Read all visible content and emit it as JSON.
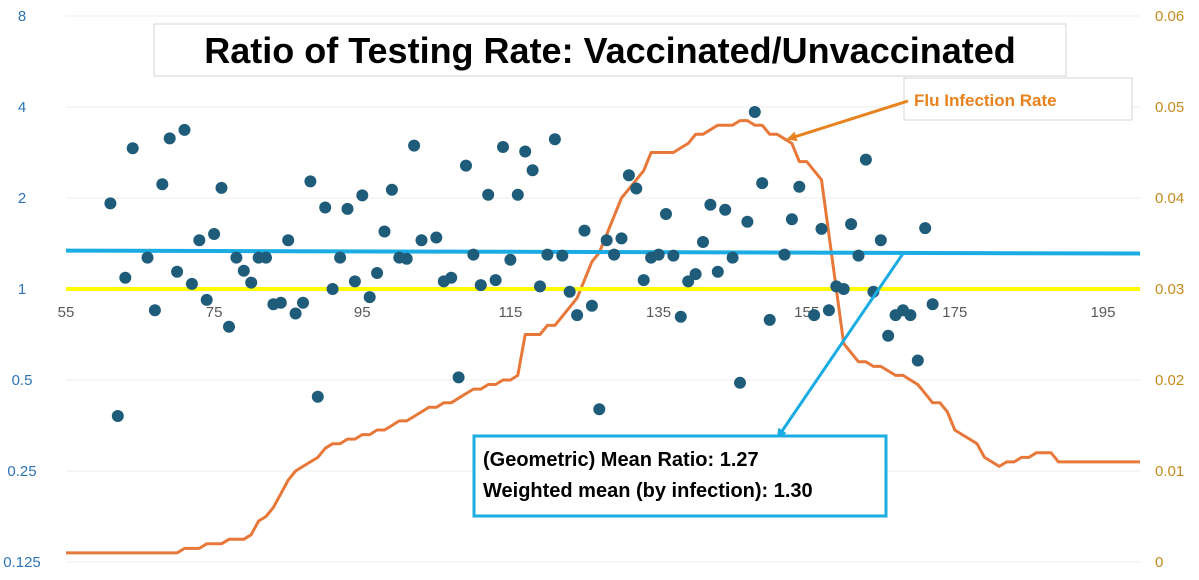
{
  "chart_data": {
    "type": "scatter",
    "title": "Ratio of Testing Rate: Vaccinated/Unvaccinated",
    "x_axis": {
      "min": 55,
      "max": 200,
      "ticks": [
        55,
        75,
        95,
        115,
        135,
        155,
        175,
        195
      ],
      "tick_labels": [
        "55",
        "75",
        "95",
        "115",
        "135",
        "155",
        "175",
        "195"
      ],
      "crosses_at_left_value": 1
    },
    "y_left": {
      "scale": "log2",
      "min": 0.125,
      "max": 8,
      "ticks": [
        0.125,
        0.25,
        0.5,
        1,
        2,
        4,
        8
      ],
      "tick_labels": [
        "0.125",
        "0.25",
        "0.5",
        "1",
        "2",
        "4",
        "8"
      ]
    },
    "y_right": {
      "scale": "linear",
      "min": 0,
      "max": 0.06,
      "ticks": [
        0,
        0.01,
        0.02,
        0.03,
        0.04,
        0.05,
        0.06
      ],
      "tick_labels": [
        "0",
        "0.01",
        "0.02",
        "0.03",
        "0.04",
        "0.05",
        "0.06"
      ]
    },
    "colors": {
      "points": "#1F5C7A",
      "flu_line": "#E8783A",
      "mean_line": "#1AACE3",
      "reference_line": "#FFFF00",
      "flu_label": "#E8821E",
      "annotation_border": "#1AACE3"
    },
    "series": [
      {
        "name": "Ratio of Testing Rate (Vaccinated/Unvaccinated)",
        "kind": "scatter",
        "axis": "left",
        "points": [
          [
            61,
            1.92
          ],
          [
            62,
            0.38
          ],
          [
            63,
            1.09
          ],
          [
            64,
            2.92
          ],
          [
            66,
            1.27
          ],
          [
            67,
            0.85
          ],
          [
            68,
            2.22
          ],
          [
            69,
            3.15
          ],
          [
            70,
            1.14
          ],
          [
            71,
            3.36
          ],
          [
            72,
            1.04
          ],
          [
            73,
            1.45
          ],
          [
            74,
            0.92
          ],
          [
            75,
            1.52
          ],
          [
            76,
            2.16
          ],
          [
            77,
            0.75
          ],
          [
            78,
            1.27
          ],
          [
            79,
            1.15
          ],
          [
            80,
            1.05
          ],
          [
            81,
            1.27
          ],
          [
            82,
            1.27
          ],
          [
            83,
            0.89
          ],
          [
            84,
            0.9
          ],
          [
            85,
            1.45
          ],
          [
            86,
            0.83
          ],
          [
            87,
            0.9
          ],
          [
            88,
            2.27
          ],
          [
            89,
            0.44
          ],
          [
            90,
            1.86
          ],
          [
            91,
            1.0
          ],
          [
            92,
            1.27
          ],
          [
            93,
            1.84
          ],
          [
            94,
            1.06
          ],
          [
            95,
            2.04
          ],
          [
            96,
            0.94
          ],
          [
            97,
            1.13
          ],
          [
            98,
            1.55
          ],
          [
            99,
            2.13
          ],
          [
            100,
            1.27
          ],
          [
            101,
            1.26
          ],
          [
            102,
            2.98
          ],
          [
            103,
            1.45
          ],
          [
            105,
            1.48
          ],
          [
            106,
            1.06
          ],
          [
            107,
            1.09
          ],
          [
            108,
            0.51
          ],
          [
            109,
            2.56
          ],
          [
            110,
            1.3
          ],
          [
            111,
            1.03
          ],
          [
            112,
            2.05
          ],
          [
            113,
            1.07
          ],
          [
            114,
            2.95
          ],
          [
            115,
            1.25
          ],
          [
            116,
            2.05
          ],
          [
            117,
            2.85
          ],
          [
            118,
            2.47
          ],
          [
            119,
            1.02
          ],
          [
            120,
            1.3
          ],
          [
            121,
            3.13
          ],
          [
            122,
            1.29
          ],
          [
            123,
            0.98
          ],
          [
            124,
            0.82
          ],
          [
            125,
            1.56
          ],
          [
            126,
            0.88
          ],
          [
            127,
            0.4
          ],
          [
            128,
            1.45
          ],
          [
            129,
            1.3
          ],
          [
            130,
            1.47
          ],
          [
            131,
            2.38
          ],
          [
            132,
            2.15
          ],
          [
            133,
            1.07
          ],
          [
            134,
            1.27
          ],
          [
            135,
            1.3
          ],
          [
            136,
            1.77
          ],
          [
            137,
            1.29
          ],
          [
            138,
            0.81
          ],
          [
            139,
            1.06
          ],
          [
            140,
            1.12
          ],
          [
            141,
            1.43
          ],
          [
            142,
            1.9
          ],
          [
            143,
            1.14
          ],
          [
            144,
            1.83
          ],
          [
            145,
            1.27
          ],
          [
            146,
            0.49
          ],
          [
            147,
            1.67
          ],
          [
            148,
            3.85
          ],
          [
            149,
            2.24
          ],
          [
            150,
            0.79
          ],
          [
            152,
            1.3
          ],
          [
            153,
            1.7
          ],
          [
            154,
            2.18
          ],
          [
            156,
            0.82
          ],
          [
            157,
            1.58
          ],
          [
            158,
            0.85
          ],
          [
            159,
            1.02
          ],
          [
            160,
            1.0
          ],
          [
            161,
            1.64
          ],
          [
            162,
            1.29
          ],
          [
            163,
            2.68
          ],
          [
            164,
            0.98
          ],
          [
            165,
            1.45
          ],
          [
            166,
            0.7
          ],
          [
            167,
            0.82
          ],
          [
            168,
            0.85
          ],
          [
            169,
            0.82
          ],
          [
            170,
            0.58
          ],
          [
            171,
            1.59
          ],
          [
            172,
            0.89
          ]
        ]
      },
      {
        "name": "Flu Infection Rate",
        "kind": "line",
        "axis": "right",
        "points": [
          [
            55,
            0.001
          ],
          [
            56,
            0.001
          ],
          [
            57,
            0.001
          ],
          [
            58,
            0.001
          ],
          [
            59,
            0.001
          ],
          [
            60,
            0.001
          ],
          [
            61,
            0.001
          ],
          [
            62,
            0.001
          ],
          [
            63,
            0.001
          ],
          [
            64,
            0.001
          ],
          [
            65,
            0.001
          ],
          [
            66,
            0.001
          ],
          [
            67,
            0.001
          ],
          [
            68,
            0.001
          ],
          [
            69,
            0.001
          ],
          [
            70,
            0.001
          ],
          [
            71,
            0.0015
          ],
          [
            72,
            0.0015
          ],
          [
            73,
            0.0015
          ],
          [
            74,
            0.002
          ],
          [
            75,
            0.002
          ],
          [
            76,
            0.002
          ],
          [
            77,
            0.0025
          ],
          [
            78,
            0.0025
          ],
          [
            79,
            0.0025
          ],
          [
            80,
            0.003
          ],
          [
            81,
            0.0045
          ],
          [
            82,
            0.005
          ],
          [
            83,
            0.006
          ],
          [
            84,
            0.0075
          ],
          [
            85,
            0.009
          ],
          [
            86,
            0.01
          ],
          [
            87,
            0.0105
          ],
          [
            88,
            0.011
          ],
          [
            89,
            0.0115
          ],
          [
            90,
            0.0125
          ],
          [
            91,
            0.013
          ],
          [
            92,
            0.013
          ],
          [
            93,
            0.0135
          ],
          [
            94,
            0.0135
          ],
          [
            95,
            0.014
          ],
          [
            96,
            0.014
          ],
          [
            97,
            0.0145
          ],
          [
            98,
            0.0145
          ],
          [
            99,
            0.015
          ],
          [
            100,
            0.0155
          ],
          [
            101,
            0.0155
          ],
          [
            102,
            0.016
          ],
          [
            103,
            0.0165
          ],
          [
            104,
            0.017
          ],
          [
            105,
            0.017
          ],
          [
            106,
            0.0175
          ],
          [
            107,
            0.0175
          ],
          [
            108,
            0.018
          ],
          [
            109,
            0.0185
          ],
          [
            110,
            0.019
          ],
          [
            111,
            0.019
          ],
          [
            112,
            0.0195
          ],
          [
            113,
            0.0195
          ],
          [
            114,
            0.02
          ],
          [
            115,
            0.02
          ],
          [
            116,
            0.0205
          ],
          [
            117,
            0.025
          ],
          [
            118,
            0.025
          ],
          [
            119,
            0.025
          ],
          [
            120,
            0.026
          ],
          [
            121,
            0.026
          ],
          [
            122,
            0.027
          ],
          [
            123,
            0.028
          ],
          [
            124,
            0.029
          ],
          [
            125,
            0.031
          ],
          [
            126,
            0.033
          ],
          [
            127,
            0.034
          ],
          [
            128,
            0.036
          ],
          [
            129,
            0.038
          ],
          [
            130,
            0.04
          ],
          [
            131,
            0.041
          ],
          [
            132,
            0.042
          ],
          [
            133,
            0.043
          ],
          [
            134,
            0.045
          ],
          [
            135,
            0.045
          ],
          [
            136,
            0.045
          ],
          [
            137,
            0.045
          ],
          [
            138,
            0.0455
          ],
          [
            139,
            0.046
          ],
          [
            140,
            0.047
          ],
          [
            141,
            0.047
          ],
          [
            142,
            0.0475
          ],
          [
            143,
            0.048
          ],
          [
            144,
            0.048
          ],
          [
            145,
            0.048
          ],
          [
            146,
            0.0485
          ],
          [
            147,
            0.0485
          ],
          [
            148,
            0.048
          ],
          [
            149,
            0.048
          ],
          [
            150,
            0.047
          ],
          [
            151,
            0.047
          ],
          [
            152,
            0.0465
          ],
          [
            153,
            0.046
          ],
          [
            154,
            0.044
          ],
          [
            155,
            0.044
          ],
          [
            156,
            0.043
          ],
          [
            157,
            0.042
          ],
          [
            158,
            0.036
          ],
          [
            159,
            0.03
          ],
          [
            160,
            0.024
          ],
          [
            161,
            0.023
          ],
          [
            162,
            0.022
          ],
          [
            163,
            0.022
          ],
          [
            164,
            0.0215
          ],
          [
            165,
            0.0215
          ],
          [
            166,
            0.021
          ],
          [
            167,
            0.0205
          ],
          [
            168,
            0.0205
          ],
          [
            169,
            0.02
          ],
          [
            170,
            0.0195
          ],
          [
            171,
            0.0185
          ],
          [
            172,
            0.0175
          ],
          [
            173,
            0.0175
          ],
          [
            174,
            0.0165
          ],
          [
            175,
            0.0145
          ],
          [
            176,
            0.014
          ],
          [
            177,
            0.0135
          ],
          [
            178,
            0.013
          ],
          [
            179,
            0.0115
          ],
          [
            180,
            0.011
          ],
          [
            181,
            0.0105
          ],
          [
            182,
            0.011
          ],
          [
            183,
            0.011
          ],
          [
            184,
            0.0115
          ],
          [
            185,
            0.0115
          ],
          [
            186,
            0.012
          ],
          [
            187,
            0.012
          ],
          [
            188,
            0.012
          ],
          [
            189,
            0.011
          ],
          [
            190,
            0.011
          ],
          [
            191,
            0.011
          ],
          [
            192,
            0.011
          ],
          [
            193,
            0.011
          ],
          [
            194,
            0.011
          ],
          [
            195,
            0.011
          ],
          [
            196,
            0.011
          ],
          [
            197,
            0.011
          ],
          [
            198,
            0.011
          ],
          [
            199,
            0.011
          ],
          [
            200,
            0.011
          ]
        ]
      },
      {
        "name": "Geometric mean ratio",
        "kind": "hline",
        "axis": "left",
        "start_value": 1.34,
        "end_value": 1.31
      },
      {
        "name": "Ratio = 1 reference",
        "kind": "hline",
        "axis": "left",
        "value": 1.0
      }
    ],
    "annotations": {
      "flu_label": "Flu Infection Rate",
      "flu_arrow_target": {
        "x": 152,
        "y_right": 0.0465
      },
      "mean_box_lines": [
        "(Geometric) Mean Ratio: 1.27",
        "Weighted mean (by infection): 1.30"
      ],
      "mean_arrow_from": {
        "x": 168,
        "y_left": 1.31
      }
    }
  }
}
